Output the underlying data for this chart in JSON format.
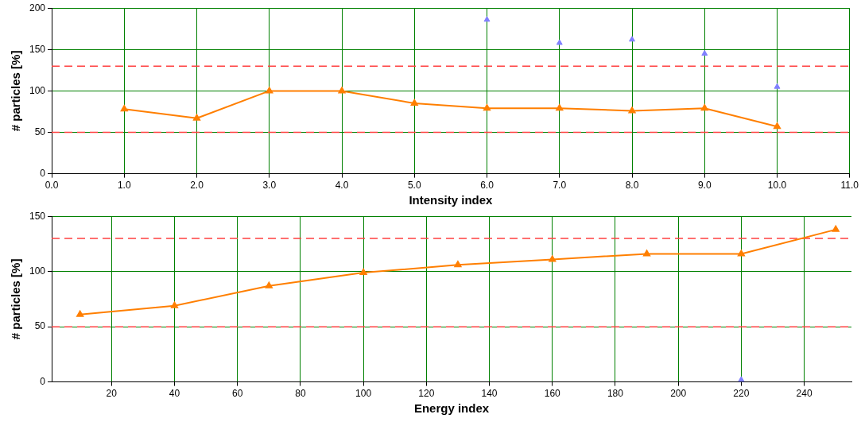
{
  "chart_data": [
    {
      "type": "line",
      "xlabel": "Intensity index",
      "ylabel": "# particles [%]",
      "xlim": [
        0,
        11
      ],
      "xticks": [
        {
          "value": 0,
          "label": "0.0"
        },
        {
          "value": 1,
          "label": "1.0"
        },
        {
          "value": 2,
          "label": "2.0"
        },
        {
          "value": 3,
          "label": "3.0"
        },
        {
          "value": 4,
          "label": "4.0"
        },
        {
          "value": 5,
          "label": "5.0"
        },
        {
          "value": 6,
          "label": "6.0"
        },
        {
          "value": 7,
          "label": "7.0"
        },
        {
          "value": 8,
          "label": "8.0"
        },
        {
          "value": 9,
          "label": "9.0"
        },
        {
          "value": 10,
          "label": "10.0"
        },
        {
          "value": 11,
          "label": "11.0"
        }
      ],
      "ylim": [
        0,
        200
      ],
      "yticks": [
        0,
        50,
        100,
        150,
        200
      ],
      "grid": true,
      "legend": false,
      "marker": "triangle",
      "line_style": "solid",
      "series": [
        {
          "color": "#ff7f00",
          "x": [
            1,
            2,
            3,
            4,
            5,
            6,
            7,
            8,
            9,
            10
          ],
          "values": [
            78,
            67,
            100,
            100,
            85,
            79,
            79,
            76,
            79,
            57
          ]
        },
        {
          "type": "scatter",
          "color": "#8080ff",
          "x": [
            6,
            7,
            8,
            9,
            10
          ],
          "values": [
            186,
            158,
            162,
            145,
            105
          ]
        }
      ],
      "ref_lines": [
        {
          "axis": "y",
          "value": 130,
          "color": "#ff4040",
          "line_style": "dashed"
        },
        {
          "axis": "y",
          "value": 50,
          "color": "#ff4040",
          "line_style": "dashed"
        }
      ]
    },
    {
      "type": "line",
      "xlabel": "Energy index",
      "ylabel": "# particles [%]",
      "xlim": [
        1,
        255
      ],
      "xticks": [
        20,
        40,
        60,
        80,
        100,
        120,
        140,
        160,
        180,
        200,
        220,
        240
      ],
      "ylim": [
        0,
        150
      ],
      "yticks": [
        0,
        50,
        100,
        150
      ],
      "grid": true,
      "legend": false,
      "marker": "triangle",
      "line_style": "solid",
      "series": [
        {
          "color": "#ff7f00",
          "x": [
            10,
            40,
            70,
            100,
            130,
            160,
            190,
            220,
            250
          ],
          "values": [
            61,
            69,
            87,
            99,
            106,
            111,
            116,
            116,
            138
          ]
        },
        {
          "type": "scatter",
          "color": "#8080ff",
          "x": [
            220
          ],
          "values": [
            2
          ]
        }
      ],
      "ref_lines": [
        {
          "axis": "y",
          "value": 130,
          "color": "#ff4040",
          "line_style": "dashed"
        },
        {
          "axis": "y",
          "value": 50,
          "color": "#ff4040",
          "line_style": "dashed"
        }
      ]
    }
  ]
}
